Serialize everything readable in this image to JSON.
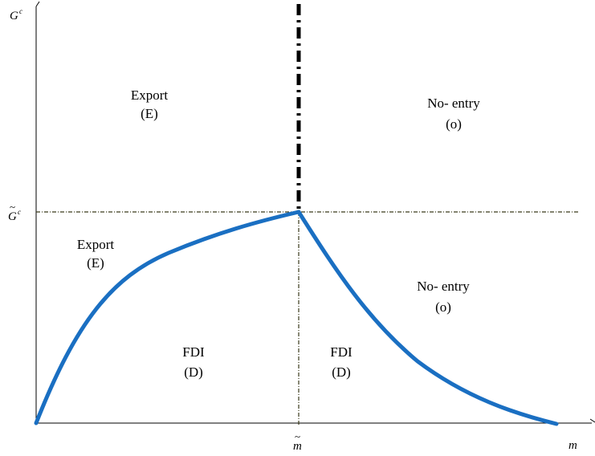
{
  "axes": {
    "y_label": "G",
    "y_superscript": "c",
    "x_label": "m",
    "y_threshold_label": "G",
    "y_threshold_superscript": "c",
    "tilde": "~",
    "x_threshold_label": "m"
  },
  "regions": {
    "export_top": {
      "name": "Export",
      "code": "(E)"
    },
    "noentry_top": {
      "name": "No- entry",
      "code": "(o)"
    },
    "export_bottom": {
      "name": "Export",
      "code": "(E)"
    },
    "noentry_bottom": {
      "name": "No- entry",
      "code": "(o)"
    },
    "fdi_left": {
      "name": "FDI",
      "code": "(D)"
    },
    "fdi_right": {
      "name": "FDI",
      "code": "(D)"
    }
  },
  "colors": {
    "curve": "#1a6fc2",
    "axis": "#000000",
    "guide": "#3a3a1a"
  }
}
